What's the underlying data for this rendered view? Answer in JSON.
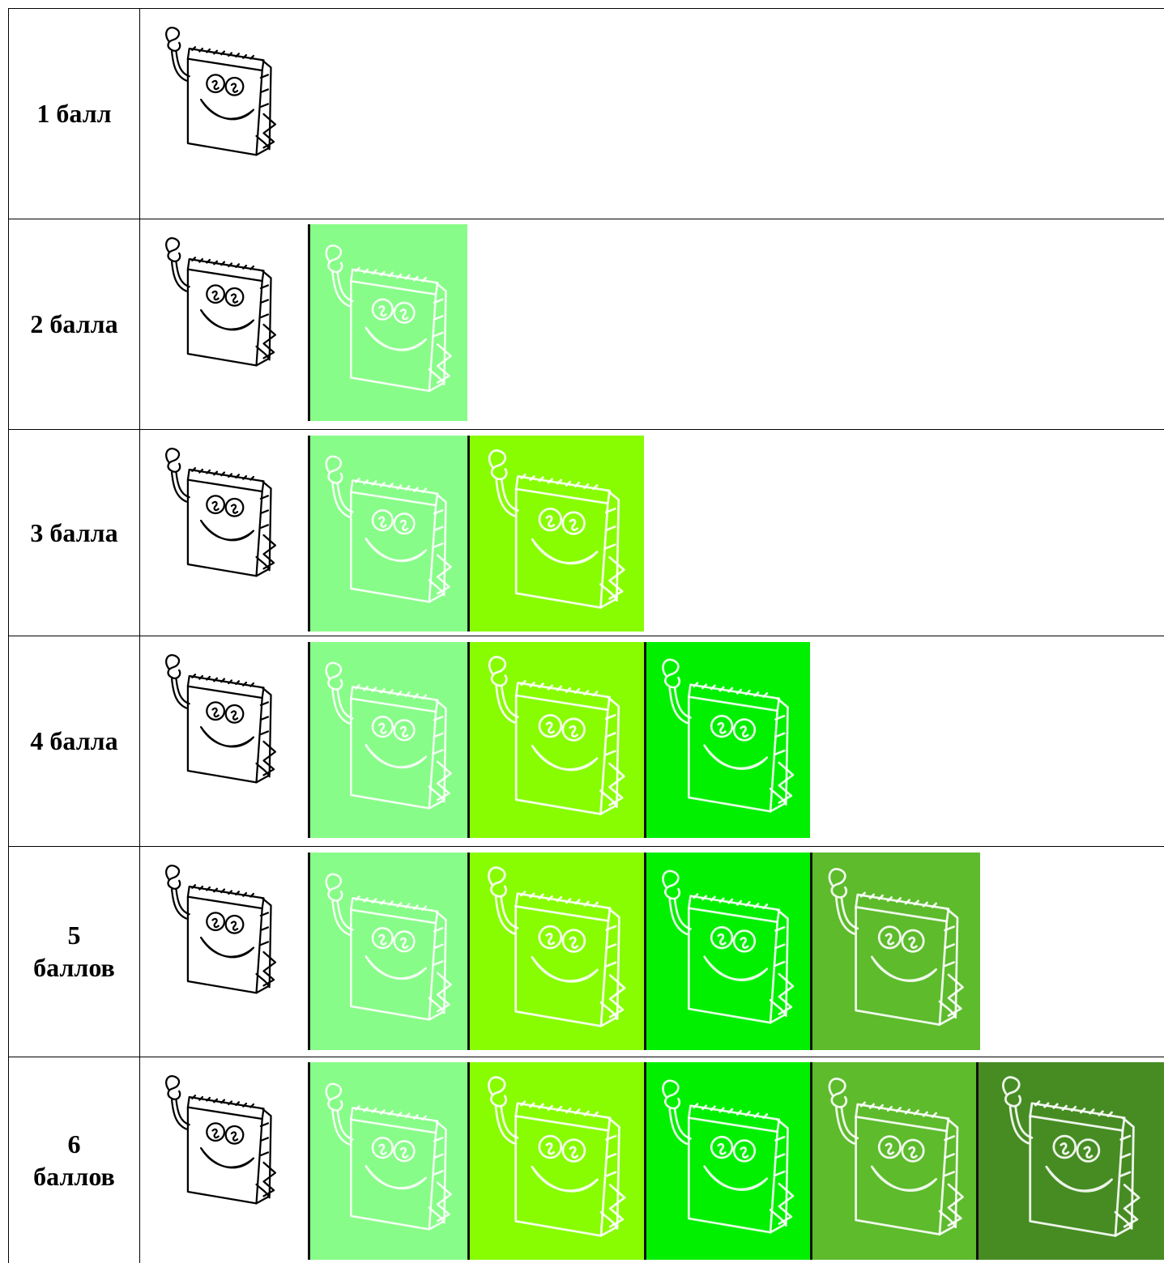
{
  "rows": [
    "1 балл",
    "2 балла",
    "3 балла",
    "4 балла",
    "5 баллов",
    "6 баллов"
  ]
}
